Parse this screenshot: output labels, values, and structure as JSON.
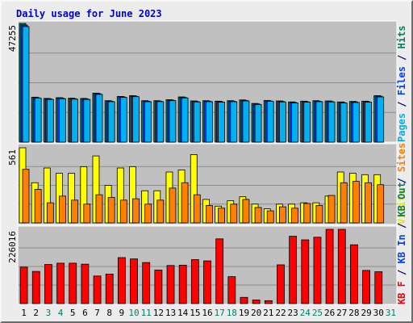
{
  "title": "Daily usage for June 2023",
  "chart_data": [
    {
      "type": "bar",
      "panel": "top",
      "ymax_label": "47255",
      "ylim": [
        0,
        47255
      ],
      "side_labels": [
        {
          "text": "Pages",
          "color": "#00b0e8"
        },
        {
          "text": " / ",
          "color": "#000080"
        },
        {
          "text": "Files",
          "color": "#0040ff"
        },
        {
          "text": " / ",
          "color": "#000080"
        },
        {
          "text": "Hits",
          "color": "#008060"
        }
      ],
      "categories": [
        "1",
        "2",
        "3",
        "4",
        "5",
        "6",
        "7",
        "8",
        "9",
        "10",
        "11",
        "12",
        "13",
        "14",
        "15",
        "16",
        "17",
        "18",
        "19",
        "20",
        "21",
        "22",
        "23",
        "24",
        "25",
        "26",
        "27",
        "28",
        "29",
        "30"
      ],
      "series": [
        {
          "name": "Hits",
          "color": "#00806a",
          "values": [
            47255,
            17900,
            17400,
            17700,
            17500,
            17400,
            19500,
            16500,
            18200,
            18500,
            16500,
            16500,
            16900,
            18000,
            16400,
            16500,
            16300,
            16500,
            16800,
            15400,
            16600,
            16400,
            16000,
            16300,
            16500,
            16400,
            16000,
            16200,
            16300,
            18500
          ]
        },
        {
          "name": "Files",
          "color": "#0040ff",
          "values": [
            46600,
            17700,
            17200,
            17500,
            17300,
            17200,
            19300,
            16300,
            18000,
            18300,
            16300,
            16300,
            16700,
            17800,
            16200,
            16300,
            16100,
            16300,
            16600,
            15200,
            16400,
            16200,
            15800,
            16100,
            16300,
            16200,
            15800,
            16000,
            16100,
            18300
          ]
        },
        {
          "name": "Pages",
          "color": "#00b0f0",
          "values": [
            46000,
            17500,
            17000,
            17300,
            17100,
            17000,
            19000,
            16100,
            17800,
            18100,
            16100,
            16100,
            16500,
            17600,
            16000,
            16100,
            15900,
            16100,
            16400,
            15000,
            16200,
            16000,
            15600,
            15900,
            16100,
            16000,
            15600,
            15800,
            15900,
            18000
          ]
        }
      ]
    },
    {
      "type": "bar",
      "panel": "middle",
      "ymax_label": "561",
      "ylim": [
        0,
        561
      ],
      "side_labels": [
        {
          "text": "Visits",
          "color": "#e8e800"
        },
        {
          "text": " / ",
          "color": "#000080"
        },
        {
          "text": "Sites",
          "color": "#ff8000"
        }
      ],
      "categories": [
        "1",
        "2",
        "3",
        "4",
        "5",
        "6",
        "7",
        "8",
        "9",
        "10",
        "11",
        "12",
        "13",
        "14",
        "15",
        "16",
        "17",
        "18",
        "19",
        "20",
        "21",
        "22",
        "23",
        "24",
        "25",
        "26",
        "27",
        "28",
        "29",
        "30"
      ],
      "series": [
        {
          "name": "Visits",
          "color": "#ffff00",
          "values": [
            561,
            300,
            410,
            370,
            370,
            420,
            500,
            280,
            410,
            420,
            240,
            240,
            380,
            395,
            510,
            175,
            125,
            165,
            195,
            140,
            105,
            140,
            140,
            150,
            150,
            200,
            380,
            370,
            360,
            360
          ]
        },
        {
          "name": "Sites",
          "color": "#ff8000",
          "values": [
            400,
            250,
            150,
            200,
            170,
            140,
            210,
            190,
            170,
            180,
            140,
            170,
            260,
            300,
            210,
            130,
            110,
            140,
            175,
            115,
            90,
            120,
            110,
            145,
            130,
            205,
            300,
            310,
            300,
            285
          ]
        }
      ]
    },
    {
      "type": "bar",
      "panel": "bottom",
      "ymax_label": "226016",
      "ylim": [
        0,
        226016
      ],
      "side_labels": [
        {
          "text": "KB F",
          "color": "#ff0000"
        },
        {
          "text": " / ",
          "color": "#000080"
        },
        {
          "text": "KB In",
          "color": "#0040ff"
        },
        {
          "text": " / ",
          "color": "#000080"
        },
        {
          "text": "KB Out",
          "color": "#008060"
        }
      ],
      "categories": [
        "1",
        "2",
        "3",
        "4",
        "5",
        "6",
        "7",
        "8",
        "9",
        "10",
        "11",
        "12",
        "13",
        "14",
        "15",
        "16",
        "17",
        "18",
        "19",
        "20",
        "21",
        "22",
        "23",
        "24",
        "25",
        "26",
        "27",
        "28",
        "29",
        "30"
      ],
      "series": [
        {
          "name": "KB F",
          "color": "#ff0000",
          "values": [
            111000,
            98000,
            119000,
            123000,
            123000,
            120000,
            84000,
            90000,
            140000,
            136000,
            125000,
            102000,
            116000,
            117000,
            134000,
            130000,
            197000,
            82000,
            19000,
            11000,
            9000,
            118000,
            205000,
            194000,
            202000,
            226016,
            226016,
            179000,
            101000,
            97000
          ]
        }
      ]
    }
  ],
  "x_axis": {
    "labels": [
      "1",
      "2",
      "3",
      "4",
      "5",
      "6",
      "7",
      "8",
      "9",
      "10",
      "11",
      "12",
      "13",
      "14",
      "15",
      "16",
      "17",
      "18",
      "19",
      "20",
      "21",
      "22",
      "23",
      "24",
      "25",
      "26",
      "27",
      "28",
      "29",
      "30",
      "31"
    ],
    "weekend_days": [
      3,
      4,
      10,
      11,
      17,
      18,
      24,
      25,
      31
    ],
    "weekday_color": "#000000",
    "weekend_color": "#00806a"
  }
}
